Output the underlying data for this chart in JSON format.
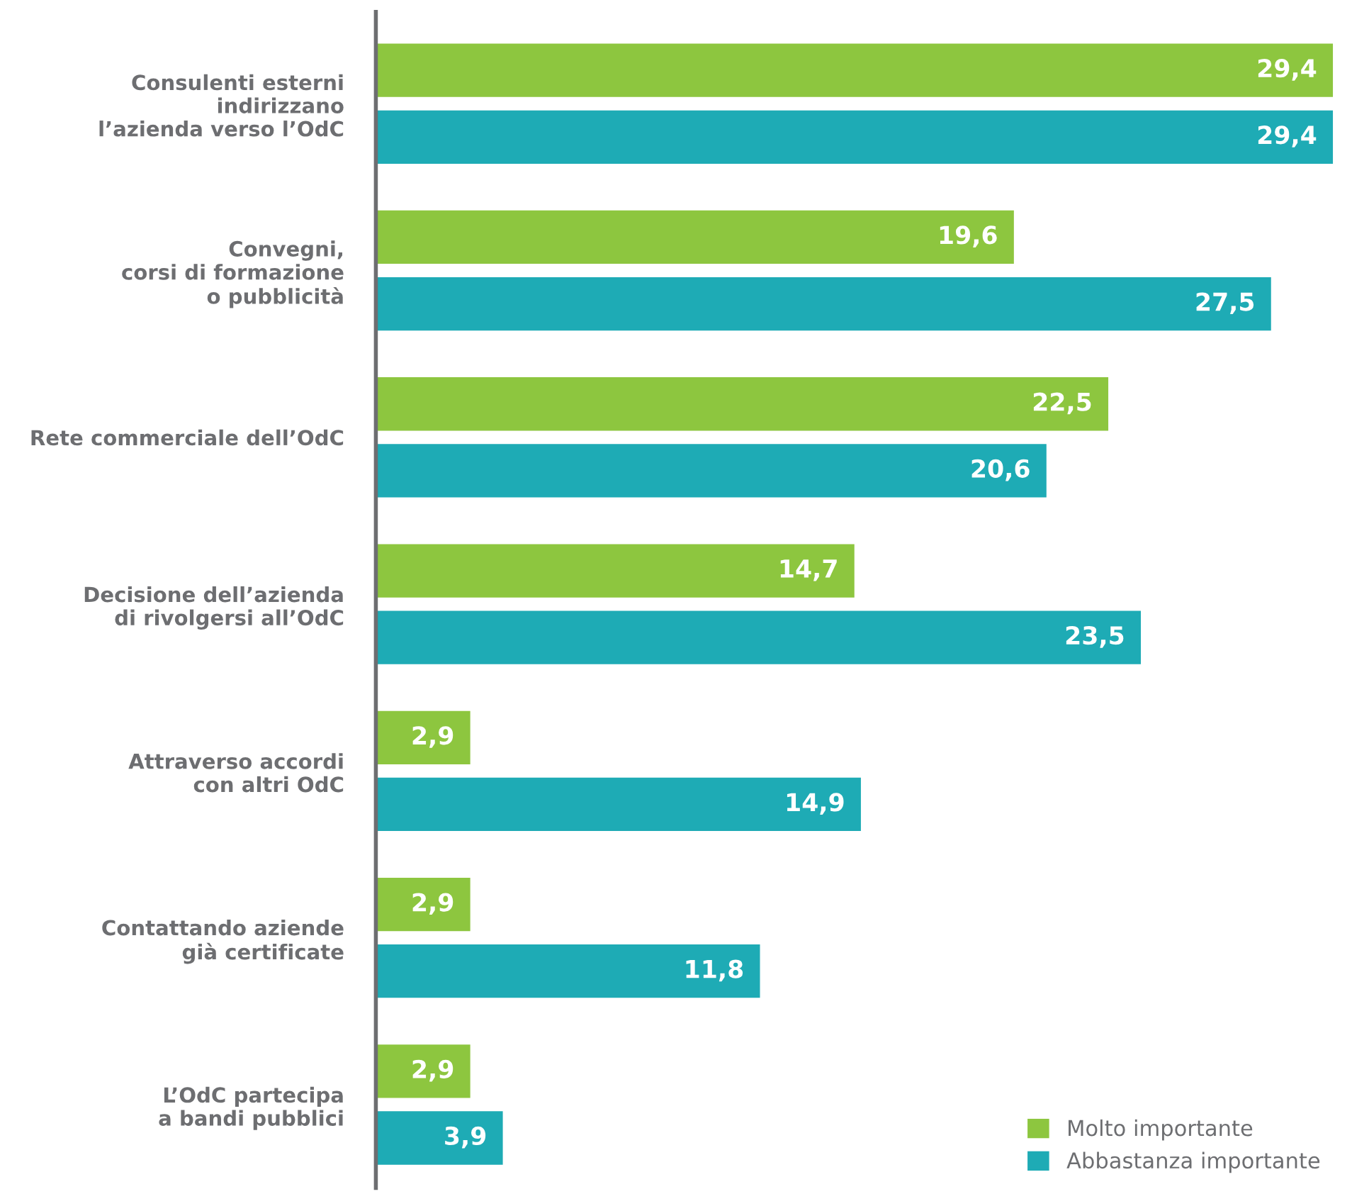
{
  "chart_data": {
    "type": "bar",
    "orientation": "horizontal",
    "categories": [
      "Consulenti esterni\nindirizzano\nl’azienda verso l’OdC",
      "Convegni,\ncorsi di formazione\no pubblicità",
      "Rete commerciale dell’OdC",
      "Decisione dell’azienda\ndi rivolgersi all’OdC",
      "Attraverso accordi\ncon altri OdC",
      "Contattando aziende\ngià certificate",
      "L’OdC partecipa\na bandi pubblici"
    ],
    "series": [
      {
        "name": "Molto importante",
        "color": "#8dc63f",
        "values": [
          29.4,
          19.6,
          22.5,
          14.7,
          2.9,
          2.9,
          2.9
        ],
        "value_labels": [
          "29,4",
          "19,6",
          "22,5",
          "14,7",
          "2,9",
          "2,9",
          "2,9"
        ]
      },
      {
        "name": "Abbastanza importante",
        "color": "#1eabb5",
        "values": [
          29.4,
          27.5,
          20.6,
          23.5,
          14.9,
          11.8,
          3.9
        ],
        "value_labels": [
          "29,4",
          "27,5",
          "20,6",
          "23,5",
          "14,9",
          "11,8",
          "3,9"
        ]
      }
    ],
    "legend": "bottom right",
    "tick_labels": "y",
    "grid": false
  }
}
